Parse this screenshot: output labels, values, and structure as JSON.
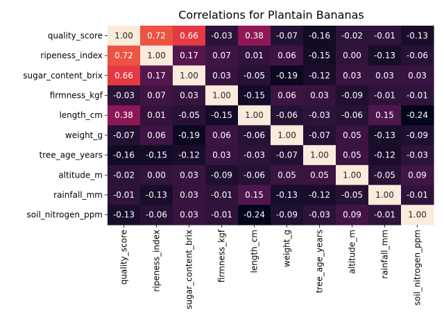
{
  "chart_data": {
    "type": "heatmap",
    "title": "Correlations for Plantain Bananas",
    "xlabel": "",
    "ylabel": "",
    "rows": [
      "quality_score",
      "ripeness_index",
      "sugar_content_brix",
      "firmness_kgf",
      "length_cm",
      "weight_g",
      "tree_age_years",
      "altitude_m",
      "rainfall_mm",
      "soil_nitrogen_ppm"
    ],
    "columns": [
      "quality_score",
      "ripeness_index",
      "sugar_content_brix",
      "firmness_kgf",
      "length_cm",
      "weight_g",
      "tree_age_years",
      "altitude_m",
      "rainfall_mm",
      "soil_nitrogen_ppm"
    ],
    "values": [
      [
        1.0,
        0.72,
        0.66,
        -0.03,
        0.38,
        -0.07,
        -0.16,
        -0.02,
        -0.01,
        -0.13
      ],
      [
        0.72,
        1.0,
        0.17,
        0.07,
        0.01,
        0.06,
        -0.15,
        -0.0,
        -0.13,
        -0.06
      ],
      [
        0.66,
        0.17,
        1.0,
        0.03,
        -0.05,
        -0.19,
        -0.12,
        0.03,
        0.03,
        0.03
      ],
      [
        -0.03,
        0.07,
        0.03,
        1.0,
        -0.15,
        0.06,
        0.03,
        -0.09,
        -0.01,
        -0.01
      ],
      [
        0.38,
        0.01,
        -0.05,
        -0.15,
        1.0,
        -0.06,
        -0.03,
        -0.06,
        0.15,
        -0.24
      ],
      [
        -0.07,
        0.06,
        -0.19,
        0.06,
        -0.06,
        1.0,
        -0.07,
        0.05,
        -0.13,
        -0.09
      ],
      [
        -0.16,
        -0.15,
        -0.12,
        0.03,
        -0.03,
        -0.07,
        1.0,
        0.05,
        -0.12,
        -0.03
      ],
      [
        -0.02,
        -0.0,
        0.03,
        -0.09,
        -0.06,
        0.05,
        0.05,
        1.0,
        -0.05,
        0.09
      ],
      [
        -0.01,
        -0.13,
        0.03,
        -0.01,
        0.15,
        -0.13,
        -0.12,
        -0.05,
        1.0,
        -0.01
      ],
      [
        -0.13,
        -0.06,
        0.03,
        -0.01,
        -0.24,
        -0.09,
        -0.03,
        0.09,
        -0.01,
        1.0
      ]
    ],
    "value_format": "2 decimals",
    "colormap": "rocket",
    "vmin": -0.24,
    "vmax": 1.0,
    "legend": "none",
    "grid": false
  }
}
